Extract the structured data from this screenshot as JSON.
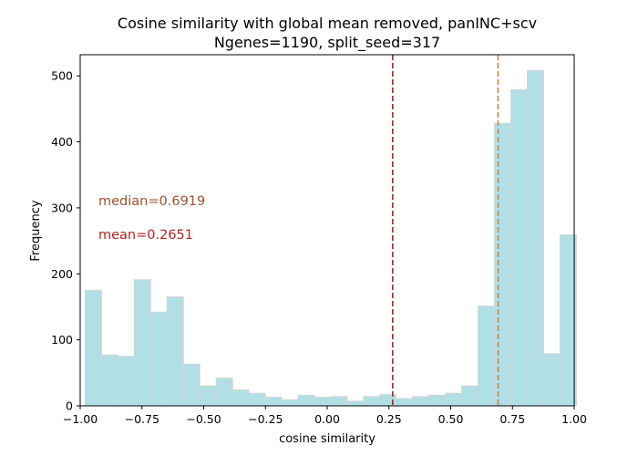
{
  "chart_data": {
    "type": "bar",
    "title": "Cosine similarity with global mean removed, panINC+scv",
    "subtitle": "Ngenes=1190, split_seed=317",
    "xlabel": "cosine similarity",
    "ylabel": "Frequency",
    "xlim": [
      -1.0,
      1.0
    ],
    "ylim": [
      0,
      532
    ],
    "xticks": [
      -1.0,
      -0.75,
      -0.5,
      -0.25,
      0.0,
      0.25,
      0.5,
      0.75,
      1.0
    ],
    "xtick_labels": [
      "−1.00",
      "−0.75",
      "−0.50",
      "−0.25",
      "0.00",
      "0.25",
      "0.50",
      "0.75",
      "1.00"
    ],
    "yticks": [
      0,
      100,
      200,
      300,
      400,
      500
    ],
    "ytick_labels": [
      "0",
      "100",
      "200",
      "300",
      "400",
      "500"
    ],
    "bin_start": -0.98,
    "bin_width": 0.0663,
    "values": [
      175,
      77,
      75,
      191,
      142,
      165,
      63,
      30,
      42,
      24,
      19,
      13,
      9,
      16,
      13,
      14,
      7,
      14,
      17,
      11,
      14,
      16,
      19,
      30,
      151,
      428,
      479,
      508,
      79,
      259
    ],
    "bar_color": "#b0e0e6",
    "bar_edge_color": "#d3d3d3",
    "lines": [
      {
        "name": "mean",
        "x": 0.2651,
        "color": "#b22222",
        "style": "dashed"
      },
      {
        "name": "median",
        "x": 0.6919,
        "color": "#cd853f",
        "style": "dashed"
      }
    ],
    "annotations": [
      {
        "text": "median=0.6919",
        "color": "#a0522d"
      },
      {
        "text": "mean=0.2651",
        "color": "#b22222"
      }
    ],
    "grid": false
  }
}
